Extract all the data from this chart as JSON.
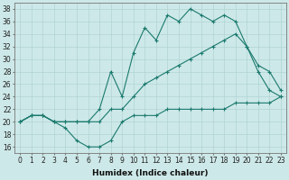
{
  "line1_x": [
    0,
    1,
    2,
    3,
    4,
    5,
    6,
    7,
    8,
    9,
    10,
    11,
    12,
    13,
    14,
    15,
    16,
    17,
    18,
    19,
    20,
    21,
    22,
    23
  ],
  "line1_y": [
    20,
    21,
    21,
    20,
    20,
    20,
    20,
    22,
    28,
    24,
    31,
    35,
    33,
    37,
    36,
    38,
    37,
    36,
    37,
    36,
    32,
    28,
    25,
    24
  ],
  "line2_x": [
    0,
    1,
    2,
    3,
    4,
    5,
    6,
    7,
    8,
    9,
    10,
    11,
    12,
    13,
    14,
    15,
    16,
    17,
    18,
    19,
    20,
    21,
    22,
    23
  ],
  "line2_y": [
    20,
    21,
    21,
    20,
    20,
    20,
    20,
    20,
    22,
    22,
    24,
    26,
    27,
    28,
    29,
    30,
    31,
    32,
    33,
    34,
    32,
    29,
    28,
    25
  ],
  "line3_x": [
    0,
    1,
    2,
    3,
    4,
    5,
    6,
    7,
    8,
    9,
    10,
    11,
    12,
    13,
    14,
    15,
    16,
    17,
    18,
    19,
    20,
    21,
    22,
    23
  ],
  "line3_y": [
    20,
    21,
    21,
    20,
    19,
    17,
    16,
    16,
    17,
    20,
    21,
    21,
    21,
    22,
    22,
    22,
    22,
    22,
    22,
    23,
    23,
    23,
    23,
    24
  ],
  "line_color": "#1a7a6e",
  "bg_color": "#cde8e8",
  "grid_color": "#aacfcf",
  "xlabel": "Humidex (Indice chaleur)",
  "ylim": [
    15,
    39
  ],
  "xlim": [
    -0.5,
    23.5
  ],
  "yticks": [
    16,
    18,
    20,
    22,
    24,
    26,
    28,
    30,
    32,
    34,
    36,
    38
  ],
  "xticks": [
    0,
    1,
    2,
    3,
    4,
    5,
    6,
    7,
    8,
    9,
    10,
    11,
    12,
    13,
    14,
    15,
    16,
    17,
    18,
    19,
    20,
    21,
    22,
    23
  ],
  "xlabel_fontsize": 6.5,
  "tick_fontsize": 5.5
}
